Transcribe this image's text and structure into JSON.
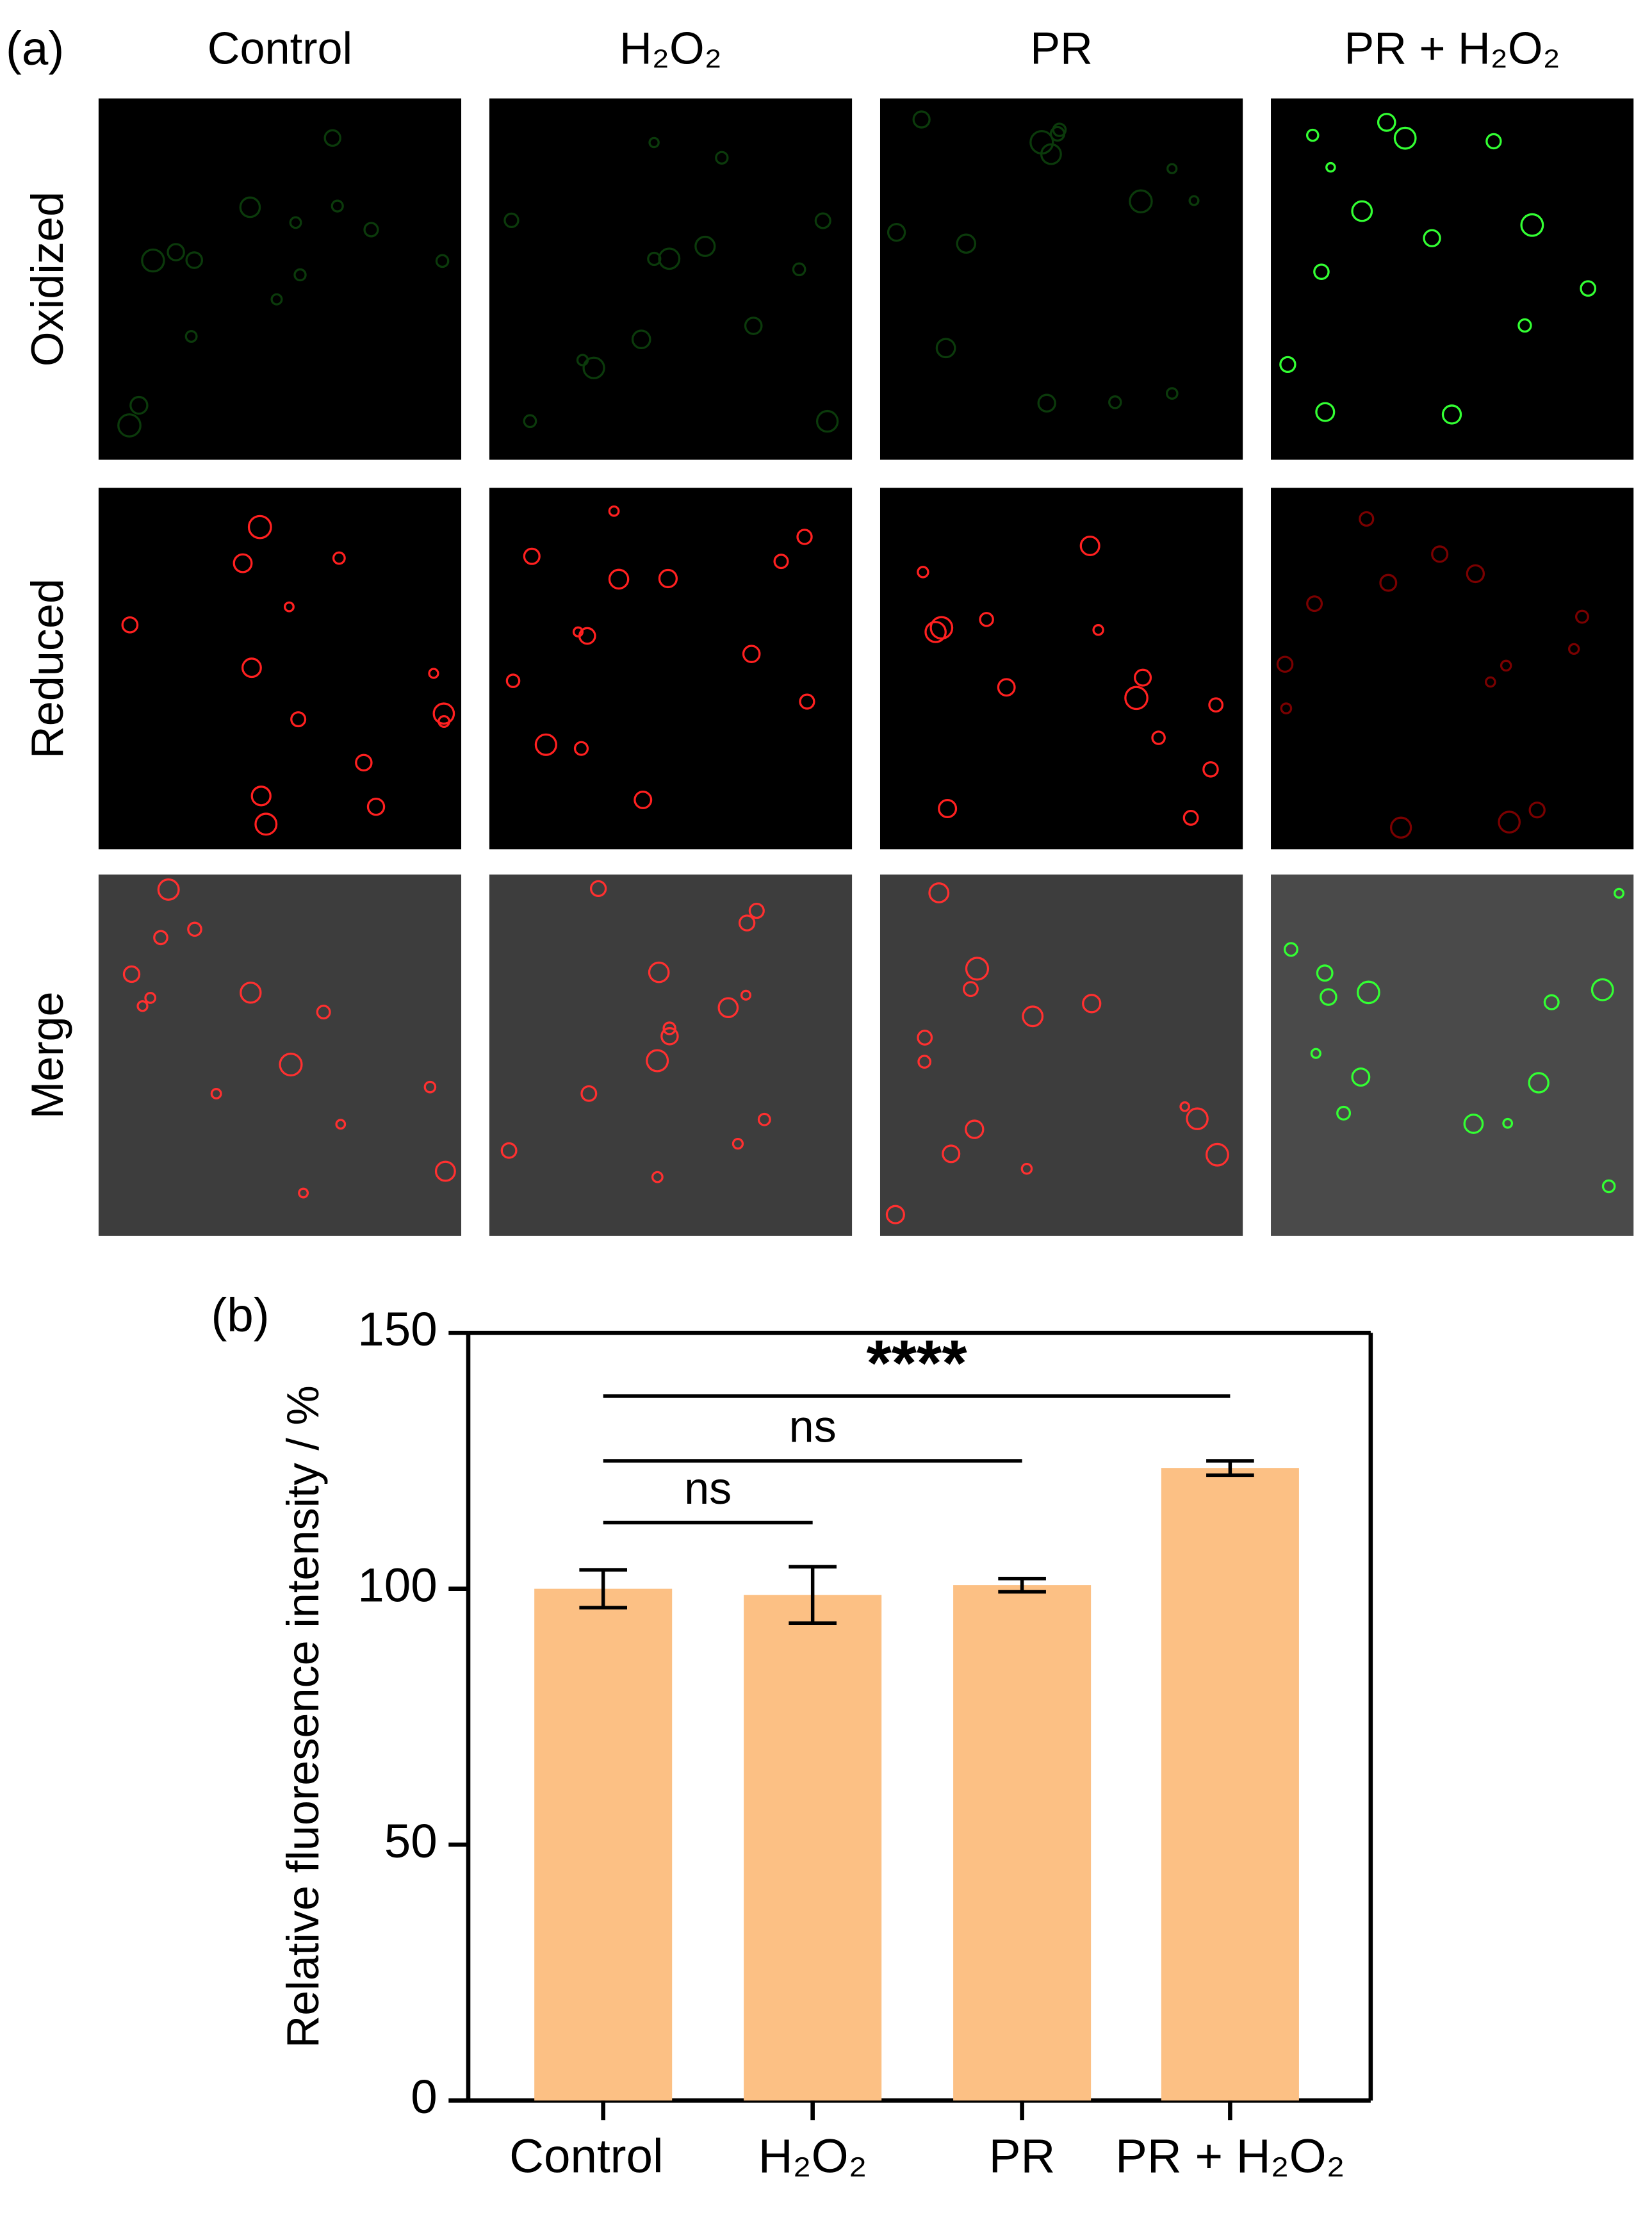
{
  "panel_a": {
    "label": "(a)",
    "columns": [
      "Control",
      "H₂O₂",
      "PR",
      "PR + H₂O₂"
    ],
    "rows": [
      "Oxidized",
      "Reduced",
      "Merge"
    ]
  },
  "chart_data": {
    "type": "bar",
    "label": "(b)",
    "ylabel": "Relative fluoresence intensity / %",
    "categories": [
      "Control",
      "H₂O₂",
      "PR",
      "PR + H₂O₂"
    ],
    "values": [
      100,
      98.8,
      100.7,
      123.6
    ],
    "errors": [
      3.7,
      5.5,
      1.3,
      1.4
    ],
    "color": "#fcc084",
    "ylim": [
      0,
      150
    ],
    "yticks": [
      0,
      50,
      100,
      150
    ],
    "annotations": [
      "ns",
      "ns",
      "****"
    ]
  }
}
